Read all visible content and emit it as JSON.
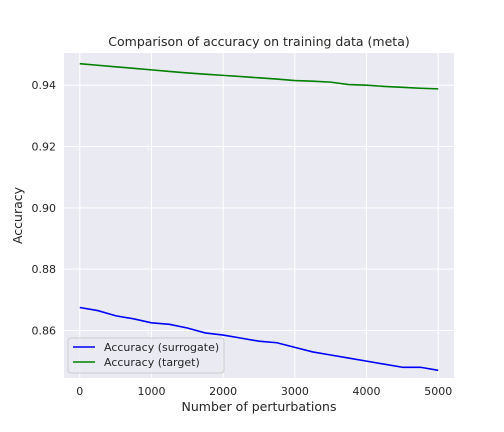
{
  "chart_data": {
    "type": "line",
    "title": "Comparison of accuracy on training data (meta)",
    "xlabel": "Number of perturbations",
    "ylabel": "Accuracy",
    "xlim": [
      -220,
      5220
    ],
    "ylim": [
      0.8445,
      0.9505
    ],
    "xticks": [
      0,
      1000,
      2000,
      3000,
      4000,
      5000
    ],
    "xtick_labels": [
      "0",
      "1000",
      "2000",
      "3000",
      "4000",
      "5000"
    ],
    "yticks": [
      0.86,
      0.88,
      0.9,
      0.92,
      0.94
    ],
    "ytick_labels": [
      "0.86",
      "0.88",
      "0.90",
      "0.92",
      "0.94"
    ],
    "grid": true,
    "legend_position": "lower-left",
    "series": [
      {
        "name": "Accuracy (surrogate)",
        "color": "#0000ff",
        "x": [
          0,
          250,
          500,
          750,
          1000,
          1250,
          1500,
          1750,
          2000,
          2250,
          2500,
          2750,
          3000,
          3250,
          3500,
          3750,
          4000,
          4250,
          4500,
          4750,
          5000
        ],
        "y": [
          0.8675,
          0.8665,
          0.8648,
          0.8638,
          0.8625,
          0.862,
          0.8608,
          0.8592,
          0.8585,
          0.8575,
          0.8565,
          0.856,
          0.8545,
          0.853,
          0.852,
          0.851,
          0.85,
          0.849,
          0.848,
          0.848,
          0.847
        ]
      },
      {
        "name": "Accuracy (target)",
        "color": "#008000",
        "x": [
          0,
          250,
          500,
          750,
          1000,
          1250,
          1500,
          1750,
          2000,
          2250,
          2500,
          2750,
          3000,
          3250,
          3500,
          3750,
          4000,
          4250,
          4500,
          4750,
          5000
        ],
        "y": [
          0.947,
          0.9465,
          0.946,
          0.9455,
          0.945,
          0.9445,
          0.944,
          0.9436,
          0.9432,
          0.9428,
          0.9424,
          0.942,
          0.9415,
          0.9413,
          0.941,
          0.9402,
          0.94,
          0.9396,
          0.9393,
          0.939,
          0.9388
        ]
      }
    ],
    "style": {
      "plot_bg": "#eaeaf2",
      "grid_color": "#ffffff",
      "legend_bg": "#eaeaf2",
      "legend_edge": "#cccccc"
    }
  }
}
